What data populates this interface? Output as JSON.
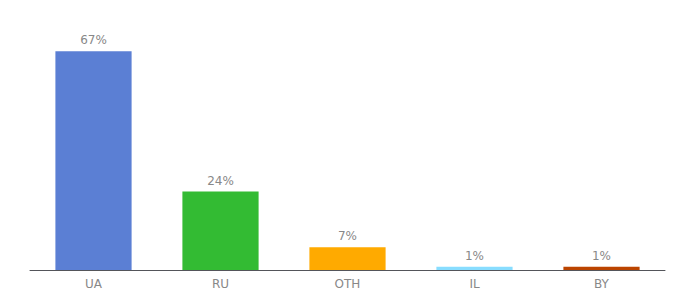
{
  "chart_data": {
    "type": "bar",
    "categories": [
      "UA",
      "RU",
      "OTH",
      "IL",
      "BY"
    ],
    "values": [
      67,
      24,
      7,
      1,
      1
    ],
    "value_labels": [
      "67%",
      "24%",
      "7%",
      "1%",
      "1%"
    ],
    "colors": [
      "#5b7fd4",
      "#33bb33",
      "#ffaa00",
      "#88ddff",
      "#bb4400"
    ],
    "ylim": [
      0,
      75
    ],
    "data_labels": true,
    "tick_labels": "x",
    "grid": false
  }
}
